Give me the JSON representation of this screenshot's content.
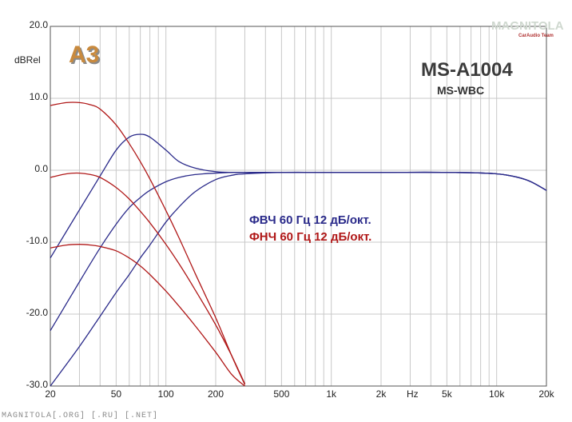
{
  "chart_data": {
    "type": "line",
    "xscale": "log",
    "xlim": [
      20,
      20000
    ],
    "ylim": [
      -30,
      20
    ],
    "ylabel": "dBRel",
    "xlabel": "Hz",
    "grid": true,
    "y_ticks": [
      "20.0",
      "10.0",
      "0.0",
      "-10.0",
      "-20.0",
      "-30.0"
    ],
    "x_ticks": [
      {
        "value": 20,
        "label": "20"
      },
      {
        "value": 50,
        "label": "50"
      },
      {
        "value": 100,
        "label": "100"
      },
      {
        "value": 200,
        "label": "200"
      },
      {
        "value": 500,
        "label": "500"
      },
      {
        "value": 1000,
        "label": "1k"
      },
      {
        "value": 2000,
        "label": "2k"
      },
      {
        "value": 5000,
        "label": "5k"
      },
      {
        "value": 10000,
        "label": "10k"
      },
      {
        "value": 20000,
        "label": "20k"
      }
    ],
    "series": [
      {
        "color": "#2a2a8a",
        "x": [
          20,
          30,
          40,
          50,
          60,
          70,
          80,
          100,
          120,
          150,
          200,
          250,
          300,
          500,
          1000,
          2000,
          5000,
          10000,
          15000,
          20000
        ],
        "y": [
          -12.2,
          -5.5,
          -0.8,
          2.8,
          4.6,
          5.0,
          4.6,
          2.8,
          1.2,
          0.3,
          -0.2,
          -0.3,
          -0.3,
          -0.3,
          -0.3,
          -0.3,
          -0.3,
          -0.5,
          -1.3,
          -2.8
        ]
      },
      {
        "color": "#2a2a8a",
        "x": [
          20,
          30,
          40,
          50,
          60,
          70,
          80,
          100,
          120,
          150,
          200,
          250,
          300,
          500,
          1000,
          2000,
          5000,
          10000,
          15000,
          20000
        ],
        "y": [
          -22.3,
          -15.5,
          -10.8,
          -7.5,
          -5.2,
          -3.8,
          -2.8,
          -1.6,
          -1.0,
          -0.6,
          -0.4,
          -0.3,
          -0.3,
          -0.3,
          -0.3,
          -0.3,
          -0.3,
          -0.5,
          -1.3,
          -2.8
        ]
      },
      {
        "color": "#2a2a8a",
        "x": [
          20,
          30,
          40,
          50,
          60,
          70,
          80,
          100,
          120,
          150,
          200,
          250,
          300,
          500,
          1000,
          2000,
          5000,
          10000,
          15000,
          20000
        ],
        "y": [
          -30,
          -24.5,
          -20.3,
          -17,
          -14.5,
          -12.2,
          -10.4,
          -7.2,
          -5.1,
          -3.0,
          -1.3,
          -0.7,
          -0.5,
          -0.3,
          -0.3,
          -0.3,
          -0.3,
          -0.5,
          -1.3,
          -2.8
        ]
      },
      {
        "color": "#b01818",
        "x": [
          20,
          25,
          30,
          35,
          40,
          50,
          60,
          70,
          80,
          100,
          120,
          150,
          200,
          250,
          300
        ],
        "y": [
          9.0,
          9.4,
          9.4,
          9.1,
          8.5,
          6.3,
          3.7,
          1.2,
          -1.2,
          -5.6,
          -9.4,
          -14.3,
          -20.5,
          -25.8,
          -29.8
        ]
      },
      {
        "color": "#b01818",
        "x": [
          20,
          25,
          30,
          35,
          40,
          50,
          60,
          70,
          80,
          100,
          120,
          150,
          200,
          250,
          300
        ],
        "y": [
          -1.0,
          -0.5,
          -0.4,
          -0.6,
          -1.0,
          -2.4,
          -4.0,
          -5.7,
          -7.3,
          -10.3,
          -13.0,
          -16.6,
          -21.5,
          -25.8,
          -29.7
        ]
      },
      {
        "color": "#b01818",
        "x": [
          20,
          25,
          30,
          35,
          40,
          50,
          60,
          70,
          80,
          100,
          120,
          150,
          200,
          250,
          300
        ],
        "y": [
          -10.8,
          -10.4,
          -10.3,
          -10.4,
          -10.6,
          -11.2,
          -12.2,
          -13.3,
          -14.5,
          -16.8,
          -18.9,
          -21.6,
          -25.3,
          -28.4,
          -30.0
        ]
      }
    ]
  },
  "labels": {
    "model": "MS-A1004",
    "submodel": "MS-WBC",
    "hpf_note": "ФВЧ 60 Гц 12 дБ/окт.",
    "lpf_note": "ФНЧ 60 Гц 12 дБ/окт.",
    "footer": "MAGNITOLA[.ORG] [.RU] [.NET]",
    "logo_a3": "A3",
    "logo_brand": "MAGNITOLA",
    "logo_sub": "CarAudio Team"
  }
}
